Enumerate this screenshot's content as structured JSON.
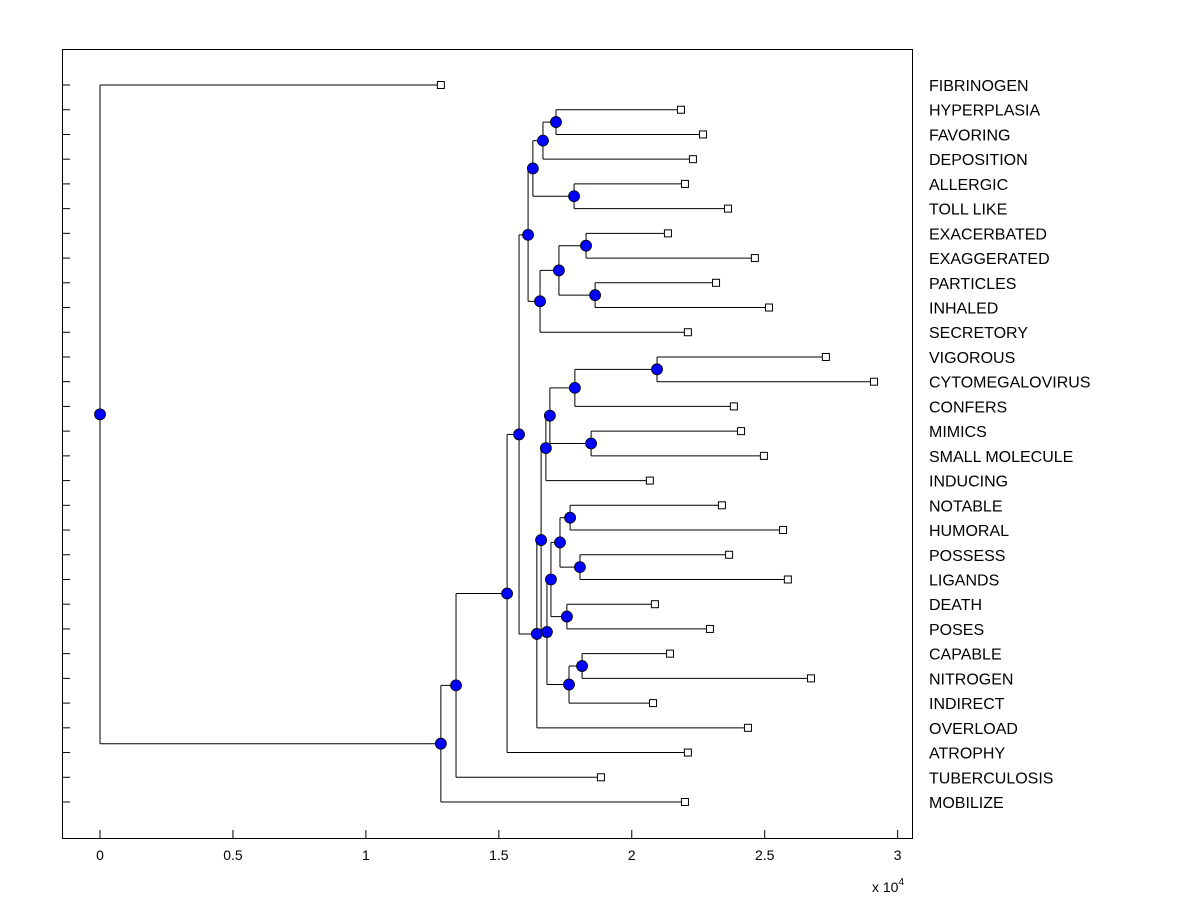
{
  "chart_data": {
    "type": "dendrogram",
    "title": "",
    "xlabel": "",
    "ylabel": "",
    "x_multiplier_label": "x 10",
    "x_multiplier_exponent": "4",
    "xlim": [
      -0.143,
      3.054
    ],
    "xticks": [
      0,
      0.5,
      1,
      1.5,
      2,
      2.5,
      3
    ],
    "xtick_labels": [
      "0",
      "0.5",
      "1",
      "1.5",
      "2",
      "2.5",
      "3"
    ],
    "colors": {
      "node": "#0000ff",
      "line": "#000000",
      "leaf": "#ffffff"
    },
    "leaves": [
      {
        "name": "FIBRINOGEN",
        "value": 1.282
      },
      {
        "name": "HYPERPLASIA",
        "value": 2.185
      },
      {
        "name": "FAVORING",
        "value": 2.268
      },
      {
        "name": "DEPOSITION",
        "value": 2.23
      },
      {
        "name": "ALLERGIC",
        "value": 2.2
      },
      {
        "name": "TOLL LIKE",
        "value": 2.362
      },
      {
        "name": "EXACERBATED",
        "value": 2.136
      },
      {
        "name": "EXAGGERATED",
        "value": 2.463
      },
      {
        "name": "PARTICLES",
        "value": 2.317
      },
      {
        "name": "INHALED",
        "value": 2.516
      },
      {
        "name": "SECRETORY",
        "value": 2.211
      },
      {
        "name": "VIGOROUS",
        "value": 2.73
      },
      {
        "name": "CYTOMEGALOVIRUS",
        "value": 2.911
      },
      {
        "name": "CONFERS",
        "value": 2.384
      },
      {
        "name": "MIMICS",
        "value": 2.411
      },
      {
        "name": "SMALL MOLECULE",
        "value": 2.497
      },
      {
        "name": "INDUCING",
        "value": 2.068
      },
      {
        "name": "NOTABLE",
        "value": 2.339
      },
      {
        "name": "HUMORAL",
        "value": 2.569
      },
      {
        "name": "POSSESS",
        "value": 2.366
      },
      {
        "name": "LIGANDS",
        "value": 2.587
      },
      {
        "name": "DEATH",
        "value": 2.087
      },
      {
        "name": "POSES",
        "value": 2.294
      },
      {
        "name": "CAPABLE",
        "value": 2.144
      },
      {
        "name": "NITROGEN",
        "value": 2.674
      },
      {
        "name": "INDIRECT",
        "value": 2.08
      },
      {
        "name": "OVERLOAD",
        "value": 2.437
      },
      {
        "name": "ATROPHY",
        "value": 2.211
      },
      {
        "name": "TUBERCULOSIS",
        "value": 1.884
      },
      {
        "name": "MOBILIZE",
        "value": 2.2
      }
    ],
    "nodes": [
      {
        "id": "K",
        "value": 1.715,
        "children": [
          "HYPERPLASIA",
          "FAVORING"
        ]
      },
      {
        "id": "I",
        "value": 1.666,
        "children": [
          "K",
          "DEPOSITION"
        ]
      },
      {
        "id": "J",
        "value": 1.783,
        "children": [
          "ALLERGIC",
          "TOLL LIKE"
        ]
      },
      {
        "id": "G",
        "value": 1.628,
        "children": [
          "I",
          "J"
        ]
      },
      {
        "id": "M",
        "value": 1.828,
        "children": [
          "EXACERBATED",
          "EXAGGERATED"
        ]
      },
      {
        "id": "N",
        "value": 1.862,
        "children": [
          "PARTICLES",
          "INHALED"
        ]
      },
      {
        "id": "L",
        "value": 1.726,
        "children": [
          "M",
          "N"
        ]
      },
      {
        "id": "H",
        "value": 1.655,
        "children": [
          "L",
          "SECRETORY"
        ]
      },
      {
        "id": "E",
        "value": 1.61,
        "children": [
          "G",
          "H"
        ]
      },
      {
        "id": "VC",
        "value": 2.095,
        "children": [
          "VIGOROUS",
          "CYTOMEGALOVIRUS"
        ]
      },
      {
        "id": "P",
        "value": 1.786,
        "children": [
          "VC",
          "CONFERS"
        ]
      },
      {
        "id": "MS",
        "value": 1.847,
        "children": [
          "MIMICS",
          "SMALL MOLECULE"
        ]
      },
      {
        "id": "Q",
        "value": 1.692,
        "children": [
          "P",
          "MS"
        ]
      },
      {
        "id": "R",
        "value": 1.677,
        "children": [
          "Q",
          "INDUCING"
        ]
      },
      {
        "id": "NH",
        "value": 1.768,
        "children": [
          "NOTABLE",
          "HUMORAL"
        ]
      },
      {
        "id": "PL",
        "value": 1.805,
        "children": [
          "POSSESS",
          "LIGANDS"
        ]
      },
      {
        "id": "S",
        "value": 1.73,
        "children": [
          "NH",
          "PL"
        ]
      },
      {
        "id": "DP",
        "value": 1.756,
        "children": [
          "DEATH",
          "POSES"
        ]
      },
      {
        "id": "T",
        "value": 1.696,
        "children": [
          "S",
          "DP"
        ]
      },
      {
        "id": "CN",
        "value": 1.813,
        "children": [
          "CAPABLE",
          "NITROGEN"
        ]
      },
      {
        "id": "U",
        "value": 1.764,
        "children": [
          "CN",
          "INDIRECT"
        ]
      },
      {
        "id": "V",
        "value": 1.681,
        "children": [
          "T",
          "U"
        ]
      },
      {
        "id": "W",
        "value": 1.659,
        "children": [
          "R",
          "V"
        ]
      },
      {
        "id": "X",
        "value": 1.643,
        "children": [
          "W",
          "OVERLOAD"
        ]
      },
      {
        "id": "D",
        "value": 1.576,
        "children": [
          "E",
          "X"
        ]
      },
      {
        "id": "C",
        "value": 1.531,
        "children": [
          "D",
          "ATROPHY"
        ]
      },
      {
        "id": "B",
        "value": 1.339,
        "children": [
          "C",
          "TUBERCULOSIS"
        ]
      },
      {
        "id": "A",
        "value": 1.282,
        "children": [
          "B",
          "MOBILIZE"
        ]
      },
      {
        "id": "ROOT",
        "value": 0,
        "children": [
          "FIBRINOGEN",
          "A"
        ]
      }
    ]
  }
}
